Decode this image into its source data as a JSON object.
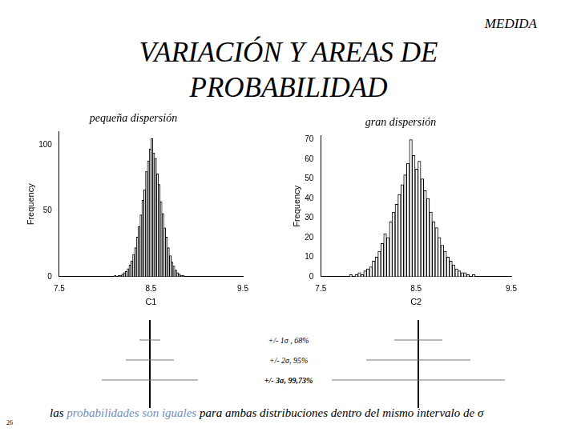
{
  "header": "MEDIDA",
  "title": "VARIACIÓN Y AREAS DE PROBABILIDAD",
  "chart_data": [
    {
      "type": "histogram",
      "title": "pequeña dispersión",
      "x_label": "C1",
      "y_label": "Frequency",
      "bins": [
        8.1,
        8.12,
        8.14,
        8.16,
        8.18,
        8.2,
        8.22,
        8.24,
        8.26,
        8.28,
        8.3,
        8.32,
        8.34,
        8.36,
        8.38,
        8.4,
        8.42,
        8.44,
        8.46,
        8.48,
        8.5,
        8.52,
        8.54,
        8.56,
        8.58,
        8.6,
        8.62,
        8.64,
        8.66,
        8.68,
        8.7,
        8.72,
        8.74,
        8.76,
        8.78,
        8.8,
        8.82,
        8.84,
        8.86
      ],
      "values": [
        1,
        0,
        1,
        1,
        2,
        3,
        4,
        6,
        9,
        12,
        17,
        22,
        30,
        38,
        47,
        58,
        66,
        80,
        88,
        97,
        105,
        94,
        90,
        78,
        70,
        57,
        48,
        37,
        30,
        22,
        16,
        11,
        8,
        5,
        3,
        2,
        1,
        1
      ],
      "color": "#ffffff",
      "xlim": [
        7.5,
        9.5
      ],
      "xticks": [
        7.5,
        8.5,
        9.5
      ],
      "ylim": [
        0,
        110
      ],
      "yticks": [
        0,
        50,
        100
      ],
      "grid": false
    },
    {
      "type": "histogram",
      "title": "gran dispersión",
      "x_label": "C2",
      "y_label": "Frequency",
      "bins": [
        7.8,
        7.83,
        7.86,
        7.89,
        7.92,
        7.95,
        7.98,
        8.01,
        8.04,
        8.07,
        8.1,
        8.13,
        8.16,
        8.19,
        8.22,
        8.25,
        8.28,
        8.31,
        8.34,
        8.37,
        8.4,
        8.43,
        8.46,
        8.49,
        8.52,
        8.55,
        8.58,
        8.61,
        8.64,
        8.67,
        8.7,
        8.73,
        8.76,
        8.79,
        8.82,
        8.85,
        8.88,
        8.91,
        8.94,
        8.97,
        9.0,
        9.03,
        9.06,
        9.09,
        9.12
      ],
      "values": [
        1,
        0,
        1,
        2,
        1,
        3,
        4,
        5,
        8,
        10,
        13,
        17,
        22,
        20,
        28,
        33,
        37,
        42,
        47,
        52,
        58,
        70,
        62,
        55,
        59,
        50,
        44,
        40,
        33,
        28,
        25,
        20,
        16,
        13,
        10,
        8,
        6,
        4,
        3,
        2,
        2,
        1,
        0,
        1
      ],
      "color": "#ffffff",
      "xlim": [
        7.5,
        9.5
      ],
      "xticks": [
        7.5,
        8.5,
        9.5
      ],
      "ylim": [
        0,
        72
      ],
      "yticks": [
        0,
        10,
        20,
        30,
        40,
        50,
        60,
        70
      ],
      "grid": false
    }
  ],
  "intervals": [
    "+/- 1σ , 68%",
    "+/- 2σ, 95%",
    "+/- 3σ, 99,73%"
  ],
  "footer": {
    "before": "las",
    "highlight": "probabilidades son iguales",
    "after": "para ambas distribuciones dentro del mismo intervalo de σ"
  },
  "page_number": 26
}
